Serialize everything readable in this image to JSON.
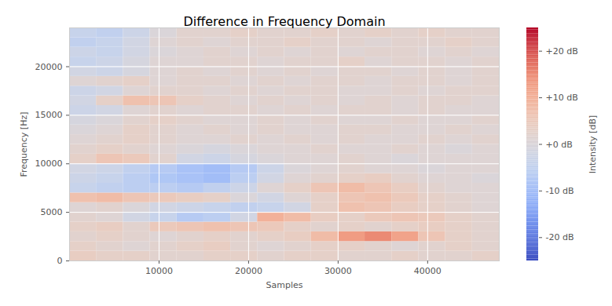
{
  "chart_data": {
    "type": "heatmap",
    "title": "Difference in Frequency Domain",
    "x_label": "Samples",
    "y_label": "Frequency [Hz]",
    "xlim": [
      0,
      48000
    ],
    "ylim": [
      0,
      24000
    ],
    "xticks": [
      10000,
      20000,
      30000,
      40000
    ],
    "yticks": [
      0,
      5000,
      10000,
      15000,
      20000
    ],
    "grid": true,
    "x_bins": [
      0,
      3000,
      6000,
      9000,
      12000,
      15000,
      18000,
      21000,
      24000,
      27000,
      30000,
      33000,
      36000,
      39000,
      42000,
      45000,
      48000
    ],
    "y_bins": [
      0,
      1000,
      2000,
      3000,
      4000,
      5000,
      6000,
      7000,
      8000,
      9000,
      10000,
      11000,
      12000,
      13000,
      14000,
      15000,
      16000,
      17000,
      18000,
      19000,
      20000,
      21000,
      22000,
      23000,
      24000
    ],
    "values": [
      [
        4,
        3,
        3,
        2,
        2,
        3,
        3,
        2,
        3,
        3,
        2,
        2,
        3,
        2,
        2,
        3
      ],
      [
        3,
        2,
        1,
        2,
        3,
        4,
        2,
        1,
        2,
        3,
        3,
        2,
        1,
        2,
        3,
        2
      ],
      [
        2,
        3,
        2,
        1,
        2,
        3,
        2,
        3,
        4,
        8,
        13,
        15,
        12,
        6,
        3,
        2
      ],
      [
        3,
        4,
        2,
        5,
        6,
        7,
        6,
        5,
        3,
        2,
        3,
        2,
        3,
        4,
        3,
        2
      ],
      [
        2,
        1,
        -2,
        -4,
        -7,
        -6,
        -2,
        10,
        8,
        4,
        3,
        5,
        6,
        5,
        3,
        2
      ],
      [
        1,
        2,
        0,
        -2,
        -3,
        -4,
        -5,
        -4,
        -2,
        3,
        7,
        6,
        4,
        3,
        2,
        1
      ],
      [
        7,
        8,
        6,
        5,
        4,
        3,
        0,
        -2,
        1,
        3,
        6,
        7,
        5,
        3,
        2,
        1
      ],
      [
        -4,
        -5,
        -6,
        -6,
        -7,
        -5,
        -3,
        1,
        3,
        6,
        8,
        6,
        4,
        2,
        1,
        1
      ],
      [
        -3,
        -4,
        -6,
        -8,
        -9,
        -10,
        -6,
        -2,
        1,
        2,
        3,
        4,
        2,
        1,
        1,
        0
      ],
      [
        -2,
        -3,
        -5,
        -7,
        -9,
        -10,
        -7,
        -3,
        0,
        1,
        2,
        1,
        1,
        0,
        1,
        1
      ],
      [
        3,
        6,
        5,
        2,
        -2,
        -3,
        -1,
        0,
        1,
        1,
        2,
        1,
        0,
        1,
        1,
        1
      ],
      [
        2,
        3,
        2,
        1,
        0,
        -1,
        0,
        1,
        1,
        2,
        1,
        1,
        2,
        1,
        0,
        1
      ],
      [
        1,
        2,
        3,
        2,
        1,
        1,
        2,
        1,
        2,
        1,
        2,
        1,
        1,
        2,
        1,
        2
      ],
      [
        0,
        1,
        3,
        2,
        1,
        2,
        1,
        2,
        1,
        1,
        2,
        2,
        1,
        1,
        2,
        1
      ],
      [
        -1,
        0,
        2,
        3,
        2,
        1,
        1,
        2,
        1,
        2,
        1,
        1,
        2,
        1,
        1,
        2
      ],
      [
        -3,
        -2,
        1,
        2,
        1,
        2,
        2,
        1,
        2,
        1,
        2,
        2,
        1,
        2,
        1,
        1
      ],
      [
        -2,
        3,
        7,
        6,
        3,
        2,
        1,
        2,
        1,
        2,
        1,
        2,
        1,
        2,
        2,
        1
      ],
      [
        -3,
        -2,
        1,
        2,
        2,
        1,
        2,
        1,
        2,
        2,
        1,
        1,
        2,
        1,
        2,
        2
      ],
      [
        1,
        2,
        3,
        1,
        2,
        2,
        1,
        2,
        1,
        2,
        2,
        1,
        2,
        2,
        1,
        2
      ],
      [
        -2,
        -3,
        -1,
        1,
        2,
        1,
        2,
        1,
        2,
        1,
        2,
        2,
        1,
        2,
        1,
        2
      ],
      [
        -4,
        -3,
        -1,
        1,
        1,
        2,
        2,
        1,
        2,
        2,
        3,
        1,
        2,
        2,
        1,
        2
      ],
      [
        -3,
        -4,
        -2,
        0,
        1,
        2,
        1,
        2,
        1,
        2,
        1,
        2,
        2,
        1,
        2,
        1
      ],
      [
        -5,
        -4,
        -2,
        1,
        2,
        1,
        2,
        2,
        3,
        2,
        2,
        1,
        2,
        2,
        3,
        2
      ],
      [
        -4,
        -5,
        -3,
        0,
        2,
        2,
        3,
        2,
        2,
        3,
        2,
        3,
        2,
        3,
        2,
        2
      ]
    ],
    "colorbar": {
      "label": "Intensity [dB]",
      "lim": [
        -25,
        25
      ],
      "ticks": [
        {
          "value": -20,
          "label": "-20 dB"
        },
        {
          "value": -10,
          "label": "-10 dB"
        },
        {
          "value": 0,
          "label": "+0 dB"
        },
        {
          "value": 10,
          "label": "+10 dB"
        },
        {
          "value": 20,
          "label": "+20 dB"
        }
      ]
    }
  }
}
